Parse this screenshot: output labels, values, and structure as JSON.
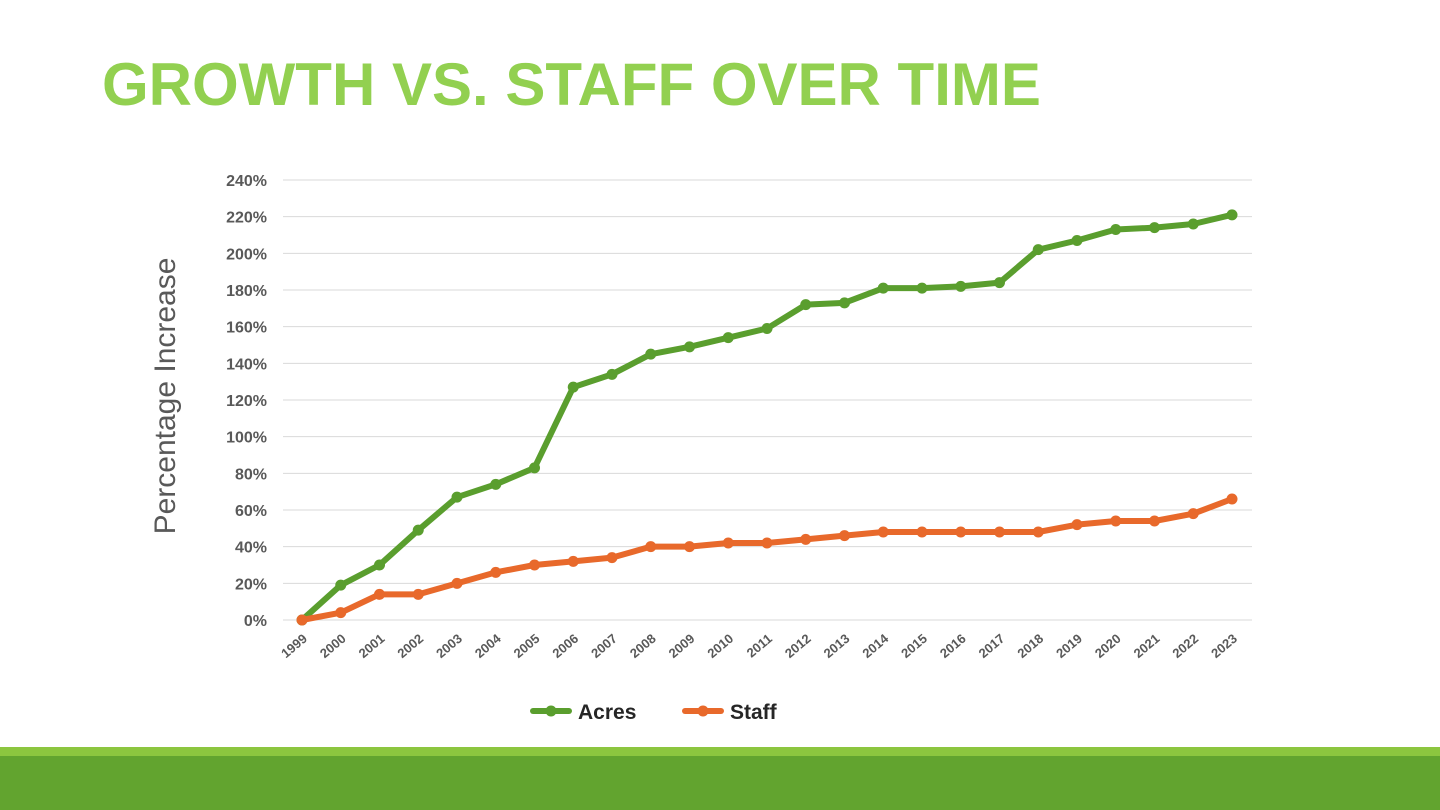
{
  "slide": {
    "title": "GROWTH VS. STAFF OVER TIME"
  },
  "colors": {
    "title": "#92d050",
    "acres": "#5a9e2e",
    "staff": "#e8692b",
    "grid": "#d9d9d9",
    "footer_light": "#8cc63f",
    "footer_dark": "#62a42f"
  },
  "chart_data": {
    "type": "line",
    "title": "",
    "xlabel": "",
    "ylabel": "Percentage Increase",
    "ylim": [
      0,
      240
    ],
    "ytick_step": 20,
    "ytick_suffix": "%",
    "grid": true,
    "legend_position": "bottom",
    "x": [
      "1999",
      "2000",
      "2001",
      "2002",
      "2003",
      "2004",
      "2005",
      "2006",
      "2007",
      "2008",
      "2009",
      "2010",
      "2011",
      "2012",
      "2013",
      "2014",
      "2015",
      "2016",
      "2017",
      "2018",
      "2019",
      "2020",
      "2021",
      "2022",
      "2023"
    ],
    "series": [
      {
        "name": "Acres",
        "color": "#5a9e2e",
        "values": [
          0,
          19,
          30,
          49,
          67,
          74,
          83,
          127,
          134,
          145,
          149,
          154,
          159,
          172,
          173,
          181,
          181,
          182,
          184,
          202,
          207,
          213,
          214,
          216,
          221
        ]
      },
      {
        "name": "Staff",
        "color": "#e8692b",
        "values": [
          0,
          4,
          14,
          14,
          20,
          26,
          30,
          32,
          34,
          40,
          40,
          42,
          42,
          44,
          46,
          48,
          48,
          48,
          48,
          48,
          52,
          54,
          54,
          58,
          66
        ]
      }
    ]
  }
}
